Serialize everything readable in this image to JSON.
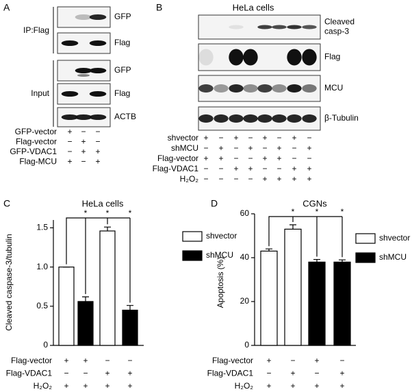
{
  "panel_a": {
    "letter": "A",
    "groups": [
      "IP:Flag",
      "Input"
    ],
    "blots": [
      "GFP",
      "Flag",
      "GFP",
      "Flag",
      "ACTB"
    ],
    "conditions": [
      {
        "label": "GFP-vector",
        "signs": [
          "+",
          "−",
          "−"
        ]
      },
      {
        "label": "Flag-vector",
        "signs": [
          "−",
          "+",
          "−"
        ]
      },
      {
        "label": "GFP-VDAC1",
        "signs": [
          "−",
          "+",
          "+"
        ]
      },
      {
        "label": "Flag-MCU",
        "signs": [
          "+",
          "−",
          "+"
        ]
      }
    ]
  },
  "panel_b": {
    "letter": "B",
    "title": "HeLa cells",
    "blots": [
      [
        "Cleaved",
        "casp-3"
      ],
      [
        "Flag"
      ],
      [
        "MCU"
      ],
      [
        "β-Tubulin"
      ]
    ],
    "conditions": [
      {
        "label": "shvector",
        "signs": [
          "+",
          "−",
          "+",
          "−",
          "+",
          "−",
          "+",
          "−"
        ]
      },
      {
        "label": "shMCU",
        "signs": [
          "−",
          "+",
          "−",
          "+",
          "−",
          "+",
          "−",
          "+"
        ]
      },
      {
        "label": "Flag-vector",
        "signs": [
          "+",
          "+",
          "−",
          "−",
          "+",
          "+",
          "−",
          "−"
        ]
      },
      {
        "label": "Flag-VDAC1",
        "signs": [
          "−",
          "−",
          "+",
          "+",
          "−",
          "−",
          "+",
          "+"
        ]
      },
      {
        "label": "H₂O₂",
        "signs": [
          "−",
          "−",
          "−",
          "−",
          "+",
          "+",
          "+",
          "+"
        ]
      }
    ]
  },
  "chart_data": [
    {
      "type": "bar",
      "letter": "C",
      "title": "HeLa cells",
      "y_label": "Cleaved caspase-3/tubulin",
      "categories": [
        null,
        null,
        null,
        null
      ],
      "series": [
        {
          "name": "shvector",
          "color": "#ffffff",
          "values": [
            1.0,
            null,
            1.46,
            null
          ],
          "errors": [
            0,
            null,
            0.05,
            null
          ]
        },
        {
          "name": "shMCU",
          "color": "#000000",
          "values": [
            null,
            0.56,
            null,
            0.45
          ],
          "errors": [
            null,
            0.06,
            null,
            0.06
          ]
        }
      ],
      "ylim": [
        0,
        1.6
      ],
      "yticks": [
        0,
        0.5,
        {
          "value": 1,
          "label": "1.0"
        },
        1.5
      ],
      "annotations": [
        "*",
        "*",
        "*"
      ],
      "conditions": [
        {
          "label": "Flag-vector",
          "signs": [
            "+",
            "+",
            "−",
            "−"
          ]
        },
        {
          "label": "Flag-VDAC1",
          "signs": [
            "−",
            "−",
            "+",
            "+"
          ]
        },
        {
          "label": "H₂O₂",
          "signs": [
            "+",
            "+",
            "+",
            "+"
          ]
        }
      ]
    },
    {
      "type": "bar",
      "letter": "D",
      "title": "CGNs",
      "y_label": "Apoptosis (%)",
      "categories": [
        null,
        null,
        null,
        null
      ],
      "series": [
        {
          "name": "shvector",
          "color": "#ffffff",
          "values": [
            43,
            53,
            null,
            null
          ],
          "errors": [
            1,
            2,
            null,
            null
          ]
        },
        {
          "name": "shMCU",
          "color": "#000000",
          "values": [
            null,
            null,
            38,
            38
          ],
          "errors": [
            null,
            null,
            1.2,
            1
          ]
        }
      ],
      "ylim": [
        0,
        60
      ],
      "yticks": [
        0,
        20,
        40,
        60
      ],
      "annotations": [
        "*",
        "*",
        "*"
      ],
      "conditions": [
        {
          "label": "Flag-vector",
          "signs": [
            "+",
            "−",
            "+",
            "−"
          ]
        },
        {
          "label": "Flag-VDAC1",
          "signs": [
            "−",
            "+",
            "−",
            "+"
          ]
        },
        {
          "label": "H₂O₂",
          "signs": [
            "+",
            "+",
            "+",
            "+"
          ]
        }
      ]
    }
  ]
}
